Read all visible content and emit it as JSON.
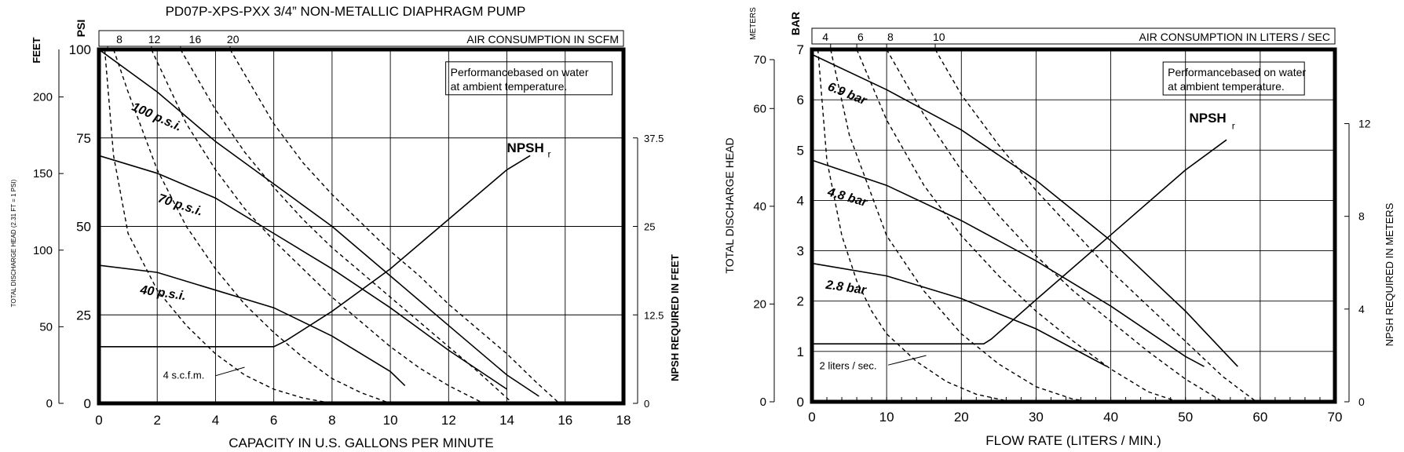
{
  "chart_data": [
    {
      "type": "line",
      "title": "PD07P-XPS-PXX 3/4” NON-METALLIC DIAPHRAGM PUMP",
      "xlabel": "CAPACITY IN U.S. GALLONS PER MINUTE",
      "ylabel_left": "PSI",
      "ylabel_feet": "FEET",
      "ylabel_feet_desc": "TOTAL DISCHARGE HEAD (2.31 FT = 1 PSI)",
      "ylabel_right": "NPSH REQUIRED IN FEET",
      "top_axis_label": "AIR CONSUMPTION IN SCFM",
      "note": "Performancebased on water at ambient temperature.",
      "npsh_label": "NPSH",
      "npsh_sub": "r",
      "air_annotation": "4 s.c.f.m.",
      "xlim": [
        0,
        18
      ],
      "ylim": [
        0,
        100
      ],
      "x_ticks": [
        "0",
        "2",
        "4",
        "6",
        "8",
        "10",
        "12",
        "14",
        "16",
        "18"
      ],
      "y_ticks": [
        "0",
        "25",
        "50",
        "75",
        "100"
      ],
      "feet_ticks": [
        "0",
        "50",
        "100",
        "150",
        "200"
      ],
      "npsh_ticks": [
        "0",
        "12.5",
        "25",
        "37.5"
      ],
      "top_ticks": [
        "8",
        "12",
        "16",
        "20"
      ],
      "series": [
        {
          "name": "100 p.s.i.",
          "style": "solid",
          "x": [
            0,
            2,
            4,
            6,
            8,
            10,
            12,
            14,
            15.1
          ],
          "y": [
            100,
            88,
            74,
            62,
            50,
            36,
            22,
            8,
            2
          ]
        },
        {
          "name": "70 p.s.i.",
          "style": "solid",
          "x": [
            0,
            2,
            4,
            6,
            8,
            10,
            12,
            14
          ],
          "y": [
            70,
            65,
            58,
            48,
            38,
            27,
            15,
            4
          ]
        },
        {
          "name": "40 p.s.i.",
          "style": "solid",
          "x": [
            0,
            2,
            4,
            6,
            8,
            10,
            10.5
          ],
          "y": [
            39,
            37,
            32,
            27,
            19,
            9,
            5
          ]
        },
        {
          "name": "NPSH",
          "style": "solid",
          "axis": "npsh",
          "x": [
            0,
            6,
            6.4,
            8,
            10,
            12,
            14,
            14.8
          ],
          "y": [
            8,
            8,
            8.8,
            13,
            19,
            26,
            33,
            35
          ]
        }
      ],
      "air_curves": [
        {
          "name": "4",
          "x": [
            0.2,
            0.5,
            1,
            2,
            3,
            4,
            5,
            6,
            7,
            8
          ],
          "y": [
            100,
            70,
            48,
            32,
            22,
            14,
            8,
            4,
            1.5,
            0
          ]
        },
        {
          "name": "8",
          "x": [
            0.5,
            1,
            2,
            3,
            4,
            5,
            6,
            7,
            8,
            9,
            10
          ],
          "y": [
            100,
            88,
            66,
            50,
            38,
            28,
            20,
            13,
            7,
            3,
            0
          ]
        },
        {
          "name": "12",
          "x": [
            1.8,
            3,
            4,
            5,
            6,
            7,
            8,
            9,
            10,
            11,
            12,
            13.2
          ],
          "y": [
            100,
            79,
            66,
            55,
            46,
            38,
            30,
            23,
            16,
            10,
            5,
            0
          ]
        },
        {
          "name": "16",
          "x": [
            2.8,
            4,
            5,
            6,
            7,
            8,
            9,
            10,
            11,
            12,
            13,
            14.2
          ],
          "y": [
            100,
            83,
            71,
            61,
            52,
            44,
            37,
            30,
            23,
            16,
            9,
            0
          ]
        },
        {
          "name": "20",
          "x": [
            4.5,
            6,
            7,
            8,
            9,
            10,
            11,
            12,
            13,
            14,
            15,
            15.8
          ],
          "y": [
            100,
            79,
            68,
            59,
            51,
            43,
            36,
            28,
            21,
            14,
            6,
            0
          ]
        }
      ]
    },
    {
      "type": "line",
      "xlabel": "FLOW RATE (LITERS / MIN.)",
      "ylabel_left": "BAR",
      "ylabel_meters": "METERS",
      "ylabel_meters_desc": "TOTAL DISCHARGE HEAD",
      "ylabel_right": "NPSH REQUIRED IN METERS",
      "top_axis_label": "AIR CONSUMPTION IN LITERS / SEC",
      "note": "Performancebased on water at ambient temperature.",
      "npsh_label": "NPSH",
      "npsh_sub": "r",
      "air_annotation": "2 liters / sec.",
      "xlim": [
        0,
        70
      ],
      "ylim": [
        0,
        7
      ],
      "x_ticks": [
        "0",
        "10",
        "20",
        "30",
        "40",
        "50",
        "60",
        "70"
      ],
      "y_ticks": [
        "0",
        "1",
        "2",
        "3",
        "4",
        "5",
        "6",
        "7"
      ],
      "meters_ticks": [
        "0",
        "20",
        "40",
        "60",
        "70"
      ],
      "npsh_ticks": [
        "0",
        "4",
        "8",
        "12"
      ],
      "top_ticks": [
        "4",
        "6",
        "8",
        "10"
      ],
      "series": [
        {
          "name": "6.9 bar",
          "style": "solid",
          "x": [
            0,
            10,
            20,
            30,
            40,
            50,
            57
          ],
          "y": [
            6.9,
            6.2,
            5.4,
            4.4,
            3.2,
            1.8,
            0.7
          ]
        },
        {
          "name": "4.8 bar",
          "style": "solid",
          "x": [
            0,
            10,
            20,
            30,
            40,
            50,
            52.5
          ],
          "y": [
            4.8,
            4.3,
            3.6,
            2.8,
            1.9,
            0.9,
            0.7
          ]
        },
        {
          "name": "2.8 bar",
          "style": "solid",
          "x": [
            0,
            10,
            20,
            30,
            39.5
          ],
          "y": [
            2.75,
            2.5,
            2.05,
            1.45,
            0.7
          ]
        },
        {
          "name": "NPSH",
          "style": "solid",
          "axis": "npsh",
          "x": [
            0,
            23,
            24,
            30,
            40,
            50,
            55.5
          ],
          "y": [
            2.5,
            2.5,
            2.7,
            4.4,
            7.2,
            10,
            11.3
          ]
        }
      ],
      "air_curves": [
        {
          "name": "2",
          "x": [
            0.8,
            2,
            4,
            6,
            8,
            10,
            14,
            18,
            22,
            26,
            28
          ],
          "y": [
            7,
            4.8,
            3.3,
            2.4,
            1.8,
            1.35,
            0.8,
            0.4,
            0.15,
            0.02,
            0
          ]
        },
        {
          "name": "4",
          "x": [
            2.5,
            5,
            10,
            15,
            20,
            25,
            30,
            35,
            38
          ],
          "y": [
            7,
            5.3,
            3.3,
            2.2,
            1.35,
            0.75,
            0.3,
            0.05,
            0
          ]
        },
        {
          "name": "6",
          "x": [
            6,
            10,
            15,
            20,
            25,
            30,
            35,
            40,
            45,
            49
          ],
          "y": [
            7,
            5.6,
            4.3,
            3.3,
            2.5,
            1.8,
            1.2,
            0.65,
            0.2,
            0
          ]
        },
        {
          "name": "8",
          "x": [
            10,
            15,
            20,
            25,
            30,
            35,
            40,
            45,
            50,
            55
          ],
          "y": [
            7,
            5.7,
            4.6,
            3.7,
            2.9,
            2.2,
            1.6,
            1,
            0.45,
            0
          ]
        },
        {
          "name": "10",
          "x": [
            16.5,
            20,
            25,
            30,
            35,
            40,
            45,
            50,
            55,
            59.5
          ],
          "y": [
            7,
            6.1,
            5.1,
            4.2,
            3.4,
            2.6,
            1.9,
            1.2,
            0.5,
            0
          ]
        }
      ]
    }
  ]
}
